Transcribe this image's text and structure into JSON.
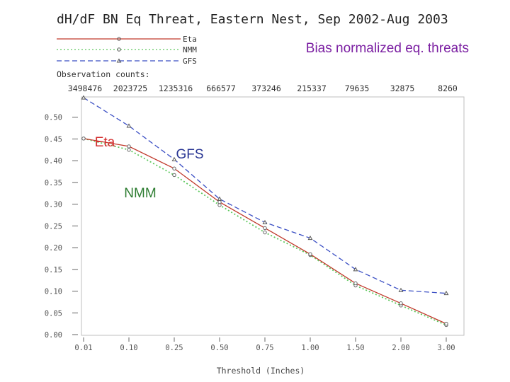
{
  "chart_data": {
    "type": "line",
    "title": "dH/dF BN Eq Threat, Eastern Nest, Sep 2002-Aug 2003",
    "subtitle": "Bias normalized eq. threats",
    "xlabel": "Threshold (Inches)",
    "ylabel": "",
    "categories": [
      "0.01",
      "0.10",
      "0.25",
      "0.50",
      "0.75",
      "1.00",
      "1.50",
      "2.00",
      "3.00"
    ],
    "ylim": [
      0.0,
      0.55
    ],
    "yticks": [
      "0.00",
      "0.05",
      "0.10",
      "0.15",
      "0.20",
      "0.25",
      "0.30",
      "0.35",
      "0.40",
      "0.45",
      "0.50"
    ],
    "ytick_values": [
      0.0,
      0.05,
      0.1,
      0.15,
      0.2,
      0.25,
      0.3,
      0.35,
      0.4,
      0.45,
      0.5
    ],
    "grid": false,
    "legend": {
      "placement": "top-left",
      "entries": [
        "Eta",
        "NMM",
        "GFS"
      ]
    },
    "observation_counts": {
      "label": "Observation counts:",
      "values": [
        "3498476",
        "2023725",
        "1235316",
        "666577",
        "373246",
        "215337",
        "79635",
        "32875",
        "8260"
      ]
    },
    "series": [
      {
        "name": "Eta",
        "color": "#c0392b",
        "style": "solid",
        "marker": "circle",
        "values": [
          0.451,
          0.433,
          0.382,
          0.305,
          0.245,
          0.185,
          0.118,
          0.072,
          0.025
        ]
      },
      {
        "name": "NMM",
        "color": "#5ec85e",
        "style": "dotted",
        "marker": "circle",
        "values": [
          0.451,
          0.425,
          0.367,
          0.298,
          0.235,
          0.183,
          0.113,
          0.067,
          0.022
        ]
      },
      {
        "name": "GFS",
        "color": "#3b4fc4",
        "style": "dashed",
        "marker": "triangle",
        "values": [
          0.545,
          0.48,
          0.403,
          0.312,
          0.258,
          0.222,
          0.15,
          0.102,
          0.095
        ]
      }
    ],
    "annotations": [
      {
        "text": "Bias normalized eq. threats",
        "color": "#7b1fa2"
      },
      {
        "text": "Eta",
        "color": "#d32f2f"
      },
      {
        "text": "GFS",
        "color": "#283593"
      },
      {
        "text": "NMM",
        "color": "#2e7d32"
      }
    ]
  }
}
